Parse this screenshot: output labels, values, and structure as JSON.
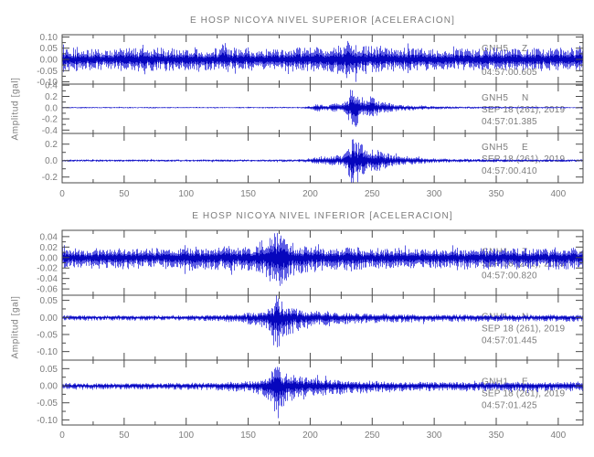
{
  "figure": {
    "background": "#ffffff",
    "waveform_color": "#3333dd",
    "waveform_core_color": "#0606bd",
    "axis_color": "#4a4a4a",
    "text_color": "#7c7c7c"
  },
  "chart_data": [
    {
      "type": "line",
      "title": "E HOSP NICOYA NIVEL SUPERIOR [ACELERACION]",
      "ylabel": "Amplitud [gal]",
      "xlim": [
        0,
        420
      ],
      "xticks": [
        0,
        50,
        100,
        150,
        200,
        250,
        300,
        350,
        400
      ],
      "x_minor_step": 25,
      "grid": false,
      "traces": [
        {
          "station": "GNH5",
          "component": "Z",
          "date": "SEP 18 (261), 2019",
          "time": "04:57:00.605",
          "ylim": [
            -0.11,
            0.11
          ],
          "yticks": [
            {
              "v": 0.1,
              "t": "0.10"
            },
            {
              "v": 0.05,
              "t": "0.05"
            },
            {
              "v": 0.0,
              "t": "0.00"
            },
            {
              "v": -0.05,
              "t": "-0.05"
            },
            {
              "v": -0.1,
              "t": "-0.10"
            }
          ],
          "asym": [
            1,
            1
          ],
          "seed": 11,
          "envelope": [
            [
              0,
              0.048
            ],
            [
              40,
              0.046
            ],
            [
              62,
              0.05
            ],
            [
              65,
              0.078
            ],
            [
              68,
              0.05
            ],
            [
              95,
              0.047
            ],
            [
              110,
              0.05
            ],
            [
              127,
              0.049
            ],
            [
              131,
              0.082
            ],
            [
              134,
              0.05
            ],
            [
              160,
              0.047
            ],
            [
              190,
              0.05
            ],
            [
              215,
              0.055
            ],
            [
              228,
              0.07
            ],
            [
              233,
              0.092
            ],
            [
              239,
              0.068
            ],
            [
              252,
              0.058
            ],
            [
              270,
              0.05
            ],
            [
              310,
              0.048
            ],
            [
              345,
              0.05
            ],
            [
              380,
              0.048
            ],
            [
              420,
              0.05
            ]
          ]
        },
        {
          "station": "GNH5",
          "component": "N",
          "date": "SEP 18 (261), 2019",
          "time": "04:57:01.385",
          "ylim": [
            -0.46,
            0.42
          ],
          "yticks": [
            {
              "v": 0.4,
              "t": "0.4"
            },
            {
              "v": 0.2,
              "t": "0.2"
            },
            {
              "v": 0.0,
              "t": "0.0"
            },
            {
              "v": -0.2,
              "t": "-0.2"
            },
            {
              "v": -0.4,
              "t": "-0.4"
            }
          ],
          "asym": [
            1,
            1
          ],
          "seed": 22,
          "envelope": [
            [
              0,
              0.012
            ],
            [
              150,
              0.012
            ],
            [
              192,
              0.014
            ],
            [
              200,
              0.03
            ],
            [
              206,
              0.07
            ],
            [
              210,
              0.045
            ],
            [
              215,
              0.055
            ],
            [
              220,
              0.09
            ],
            [
              224,
              0.06
            ],
            [
              228,
              0.1
            ],
            [
              231,
              0.2
            ],
            [
              233,
              0.44
            ],
            [
              235,
              0.3
            ],
            [
              237,
              0.42
            ],
            [
              240,
              0.22
            ],
            [
              244,
              0.15
            ],
            [
              248,
              0.2
            ],
            [
              252,
              0.17
            ],
            [
              257,
              0.1
            ],
            [
              263,
              0.09
            ],
            [
              270,
              0.06
            ],
            [
              280,
              0.045
            ],
            [
              295,
              0.03
            ],
            [
              320,
              0.02
            ],
            [
              360,
              0.015
            ],
            [
              420,
              0.013
            ]
          ]
        },
        {
          "station": "GNH5",
          "component": "E",
          "date": "SEP 18 (261), 2019",
          "time": "04:57:00.410",
          "ylim": [
            -0.27,
            0.33
          ],
          "yticks": [
            {
              "v": 0.2,
              "t": "0.2"
            },
            {
              "v": 0.0,
              "t": "0.0"
            },
            {
              "v": -0.2,
              "t": "-0.2"
            }
          ],
          "asym": [
            1,
            1
          ],
          "seed": 33,
          "envelope": [
            [
              0,
              0.013
            ],
            [
              150,
              0.013
            ],
            [
              195,
              0.016
            ],
            [
              202,
              0.035
            ],
            [
              208,
              0.05
            ],
            [
              214,
              0.045
            ],
            [
              220,
              0.06
            ],
            [
              226,
              0.07
            ],
            [
              230,
              0.12
            ],
            [
              233,
              0.3
            ],
            [
              236,
              0.2
            ],
            [
              239,
              0.27
            ],
            [
              243,
              0.16
            ],
            [
              248,
              0.13
            ],
            [
              253,
              0.14
            ],
            [
              258,
              0.1
            ],
            [
              265,
              0.08
            ],
            [
              272,
              0.06
            ],
            [
              282,
              0.045
            ],
            [
              295,
              0.03
            ],
            [
              315,
              0.022
            ],
            [
              350,
              0.017
            ],
            [
              420,
              0.015
            ]
          ]
        }
      ]
    },
    {
      "type": "line",
      "title": "E HOSP NICOYA NIVEL INFERIOR [ACELERACION]",
      "ylabel": "Amplitud [gal]",
      "xlim": [
        0,
        420
      ],
      "xticks": [
        0,
        50,
        100,
        150,
        200,
        250,
        300,
        350,
        400
      ],
      "x_minor_step": 25,
      "grid": false,
      "traces": [
        {
          "station": "GNH1",
          "component": "Z",
          "date": "SEP 18 (261), 2019",
          "time": "04:57:00.820",
          "ylim": [
            -0.072,
            0.052
          ],
          "yticks": [
            {
              "v": 0.04,
              "t": "0.04"
            },
            {
              "v": 0.02,
              "t": "0.02"
            },
            {
              "v": 0.0,
              "t": "0.00"
            },
            {
              "v": -0.02,
              "t": "-0.02"
            },
            {
              "v": -0.04,
              "t": "-0.04"
            },
            {
              "v": -0.06,
              "t": "-0.06"
            }
          ],
          "asym": [
            0.8,
            1
          ],
          "seed": 44,
          "envelope": [
            [
              0,
              0.021
            ],
            [
              40,
              0.02
            ],
            [
              80,
              0.021
            ],
            [
              100,
              0.022
            ],
            [
              113,
              0.027
            ],
            [
              118,
              0.022
            ],
            [
              128,
              0.024
            ],
            [
              138,
              0.028
            ],
            [
              143,
              0.024
            ],
            [
              152,
              0.026
            ],
            [
              160,
              0.03
            ],
            [
              166,
              0.045
            ],
            [
              170,
              0.065
            ],
            [
              174,
              0.06
            ],
            [
              178,
              0.05
            ],
            [
              183,
              0.035
            ],
            [
              190,
              0.03
            ],
            [
              200,
              0.027
            ],
            [
              215,
              0.025
            ],
            [
              235,
              0.023
            ],
            [
              265,
              0.021
            ],
            [
              300,
              0.02
            ],
            [
              340,
              0.022
            ],
            [
              380,
              0.021
            ],
            [
              420,
              0.022
            ]
          ]
        },
        {
          "station": "GNH1",
          "component": "N",
          "date": "SEP 18 (261), 2019",
          "time": "04:57:01.445",
          "ylim": [
            -0.125,
            0.065
          ],
          "yticks": [
            {
              "v": 0.05,
              "t": "0.05"
            },
            {
              "v": 0.0,
              "t": "0.00"
            },
            {
              "v": -0.05,
              "t": "-0.05"
            },
            {
              "v": -0.1,
              "t": "-0.10"
            }
          ],
          "asym": [
            0.6,
            1
          ],
          "seed": 55,
          "envelope": [
            [
              0,
              0.009
            ],
            [
              80,
              0.009
            ],
            [
              120,
              0.01
            ],
            [
              138,
              0.014
            ],
            [
              145,
              0.02
            ],
            [
              152,
              0.022
            ],
            [
              158,
              0.024
            ],
            [
              164,
              0.03
            ],
            [
              168,
              0.055
            ],
            [
              171,
              0.08
            ],
            [
              173,
              0.115
            ],
            [
              175,
              0.09
            ],
            [
              178,
              0.065
            ],
            [
              182,
              0.05
            ],
            [
              187,
              0.04
            ],
            [
              193,
              0.033
            ],
            [
              200,
              0.03
            ],
            [
              210,
              0.026
            ],
            [
              222,
              0.022
            ],
            [
              240,
              0.018
            ],
            [
              265,
              0.015
            ],
            [
              300,
              0.013
            ],
            [
              350,
              0.012
            ],
            [
              420,
              0.012
            ]
          ]
        },
        {
          "station": "GNH1",
          "component": "E",
          "date": "SEP 18 (261), 2019",
          "time": "04:57:01.425",
          "ylim": [
            -0.115,
            0.075
          ],
          "yticks": [
            {
              "v": 0.05,
              "t": "0.05"
            },
            {
              "v": 0.0,
              "t": "0.00"
            },
            {
              "v": -0.05,
              "t": "-0.05"
            },
            {
              "v": -0.1,
              "t": "-0.10"
            }
          ],
          "asym": [
            0.65,
            1
          ],
          "seed": 66,
          "envelope": [
            [
              0,
              0.011
            ],
            [
              80,
              0.011
            ],
            [
              120,
              0.013
            ],
            [
              140,
              0.016
            ],
            [
              152,
              0.019
            ],
            [
              160,
              0.024
            ],
            [
              166,
              0.04
            ],
            [
              170,
              0.07
            ],
            [
              173,
              0.1
            ],
            [
              176,
              0.075
            ],
            [
              180,
              0.055
            ],
            [
              186,
              0.045
            ],
            [
              193,
              0.04
            ],
            [
              200,
              0.036
            ],
            [
              210,
              0.03
            ],
            [
              222,
              0.026
            ],
            [
              240,
              0.022
            ],
            [
              262,
              0.018
            ],
            [
              290,
              0.016
            ],
            [
              330,
              0.015
            ],
            [
              380,
              0.016
            ],
            [
              420,
              0.016
            ]
          ]
        }
      ]
    }
  ]
}
